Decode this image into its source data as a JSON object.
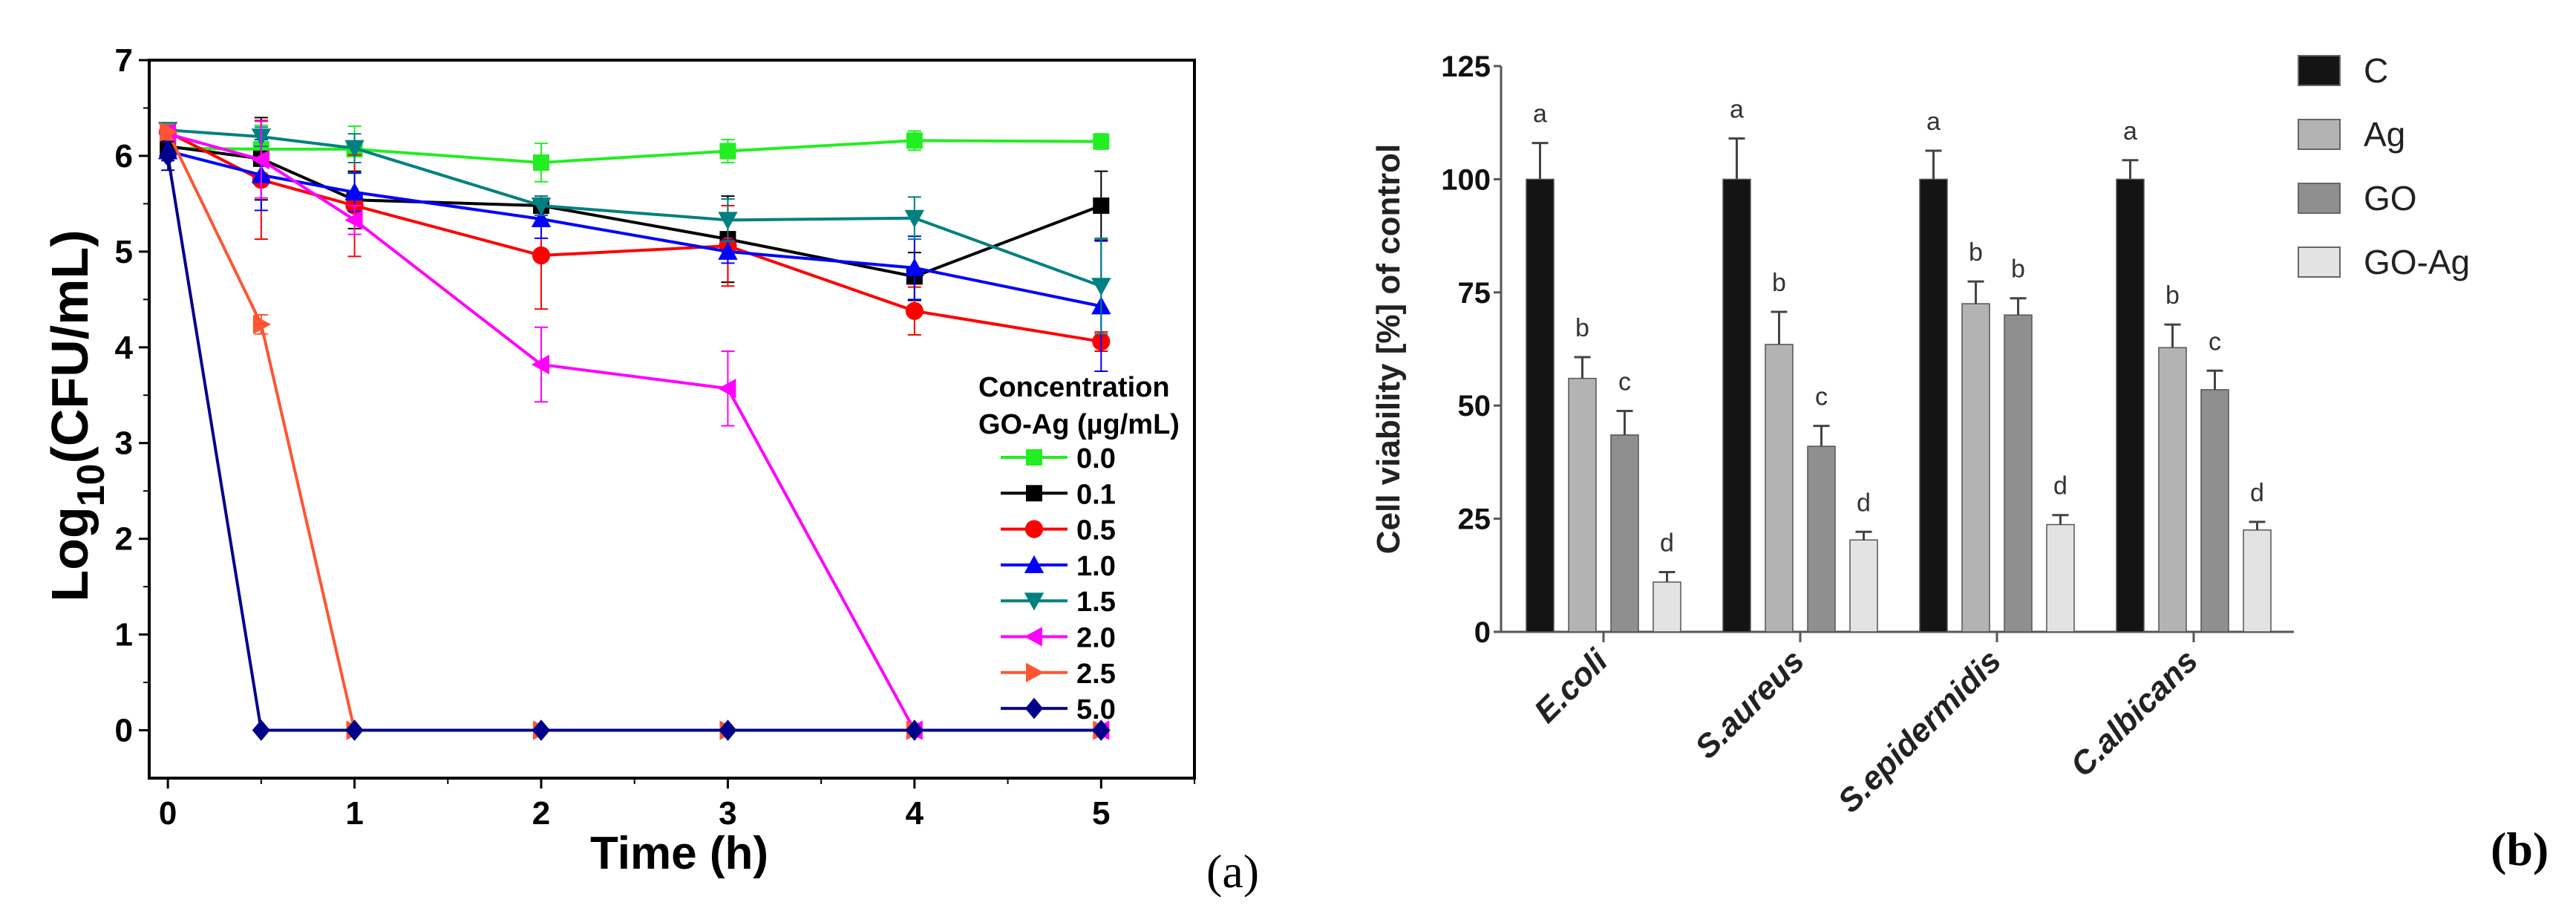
{
  "chart_data": [
    {
      "panel_label": "(a)",
      "type": "line",
      "title": "",
      "xlabel": "Time (h)",
      "ylabel_parts": [
        "Log",
        "10",
        "(CFU/mL)"
      ],
      "xlim": [
        -0.1,
        5.5
      ],
      "ylim": [
        -0.5,
        7
      ],
      "xticks": [
        0,
        1,
        2,
        3,
        4,
        5
      ],
      "yticks": [
        0,
        1,
        2,
        3,
        4,
        5,
        6,
        7
      ],
      "legend_title": [
        "Concentration",
        "GO-Ag (µg/mL)"
      ],
      "legend_placement": "right",
      "x": [
        0,
        0.5,
        1,
        2,
        3,
        4,
        5
      ],
      "series": [
        {
          "name": "0.0",
          "color": "#22ee22",
          "marker": "square",
          "values": [
            6.08,
            6.07,
            6.07,
            5.93,
            6.05,
            6.16,
            6.15
          ],
          "err": [
            0.1,
            0.25,
            0.24,
            0.2,
            0.12,
            0.1,
            0.08
          ]
        },
        {
          "name": "0.1",
          "color": "#000000",
          "marker": "square",
          "values": [
            6.1,
            5.97,
            5.54,
            5.48,
            5.13,
            4.74,
            5.48
          ],
          "err": [
            0.1,
            0.43,
            0.3,
            0.1,
            0.45,
            0.25,
            0.36
          ]
        },
        {
          "name": "0.5",
          "color": "#ff0000",
          "marker": "circle",
          "values": [
            6.25,
            5.75,
            5.48,
            4.96,
            5.06,
            4.38,
            4.06
          ],
          "err": [
            0.08,
            0.62,
            0.53,
            0.56,
            0.42,
            0.25,
            0.1
          ]
        },
        {
          "name": "1.0",
          "color": "#0000ff",
          "marker": "triangle-up",
          "values": [
            6.05,
            5.8,
            5.62,
            5.34,
            5.0,
            4.83,
            4.43
          ],
          "err": [
            0.1,
            0.37,
            0.2,
            0.2,
            0.12,
            0.33,
            0.68
          ]
        },
        {
          "name": "1.5",
          "color": "#008080",
          "marker": "triangle-down",
          "values": [
            6.27,
            6.2,
            6.08,
            5.48,
            5.33,
            5.35,
            4.64
          ],
          "err": [
            0.07,
            0.1,
            0.15,
            0.1,
            0.22,
            0.22,
            0.5
          ]
        },
        {
          "name": "2.0",
          "color": "#ff00ff",
          "marker": "triangle-left",
          "values": [
            6.23,
            5.96,
            5.33,
            3.82,
            3.57,
            0,
            0
          ],
          "err": [
            0.08,
            0.4,
            0.15,
            0.39,
            0.39,
            0,
            0
          ]
        },
        {
          "name": "2.5",
          "color": "#ff5533",
          "marker": "triangle-right",
          "values": [
            6.25,
            4.24,
            0,
            0,
            0,
            0,
            0
          ],
          "err": [
            0.08,
            0.1,
            0,
            0,
            0,
            0,
            0
          ]
        },
        {
          "name": "5.0",
          "color": "#00008b",
          "marker": "diamond",
          "values": [
            6.0,
            0,
            0,
            0,
            0,
            0,
            0
          ],
          "err": [
            0.15,
            0,
            0,
            0,
            0,
            0,
            0
          ]
        }
      ]
    },
    {
      "panel_label": "(b)",
      "type": "bar",
      "title": "",
      "xlabel": "",
      "ylabel": "Cell viability  [%] of control",
      "ylim": [
        0,
        125
      ],
      "yticks": [
        0,
        25,
        50,
        75,
        100,
        125
      ],
      "legend_placement": "top-right",
      "categories": [
        "E.coli",
        "S.aureus",
        "S.epidermidis",
        "C.albicans"
      ],
      "series": [
        {
          "name": "C",
          "color": "#141414",
          "values": [
            100,
            100,
            100,
            100
          ],
          "err": [
            8,
            9,
            6.3,
            4.2
          ],
          "letters": [
            "a",
            "a",
            "a",
            "a"
          ]
        },
        {
          "name": "Ag",
          "color": "#b3b3b3",
          "values": [
            56,
            63.5,
            72.5,
            62.8
          ],
          "err": [
            4.7,
            7.2,
            4.9,
            5.1
          ],
          "letters": [
            "b",
            "b",
            "b",
            "b"
          ]
        },
        {
          "name": "GO",
          "color": "#8f8f8f",
          "values": [
            43.5,
            41,
            70,
            53.5
          ],
          "err": [
            5.3,
            4.5,
            3.7,
            4.2
          ],
          "letters": [
            "c",
            "c",
            "b",
            "c"
          ]
        },
        {
          "name": "GO-Ag",
          "color": "#e3e3e3",
          "values": [
            11,
            20.3,
            23.7,
            22.5
          ],
          "err": [
            2.2,
            1.8,
            2.1,
            1.8
          ],
          "letters": [
            "d",
            "d",
            "d",
            "d"
          ]
        }
      ]
    }
  ]
}
